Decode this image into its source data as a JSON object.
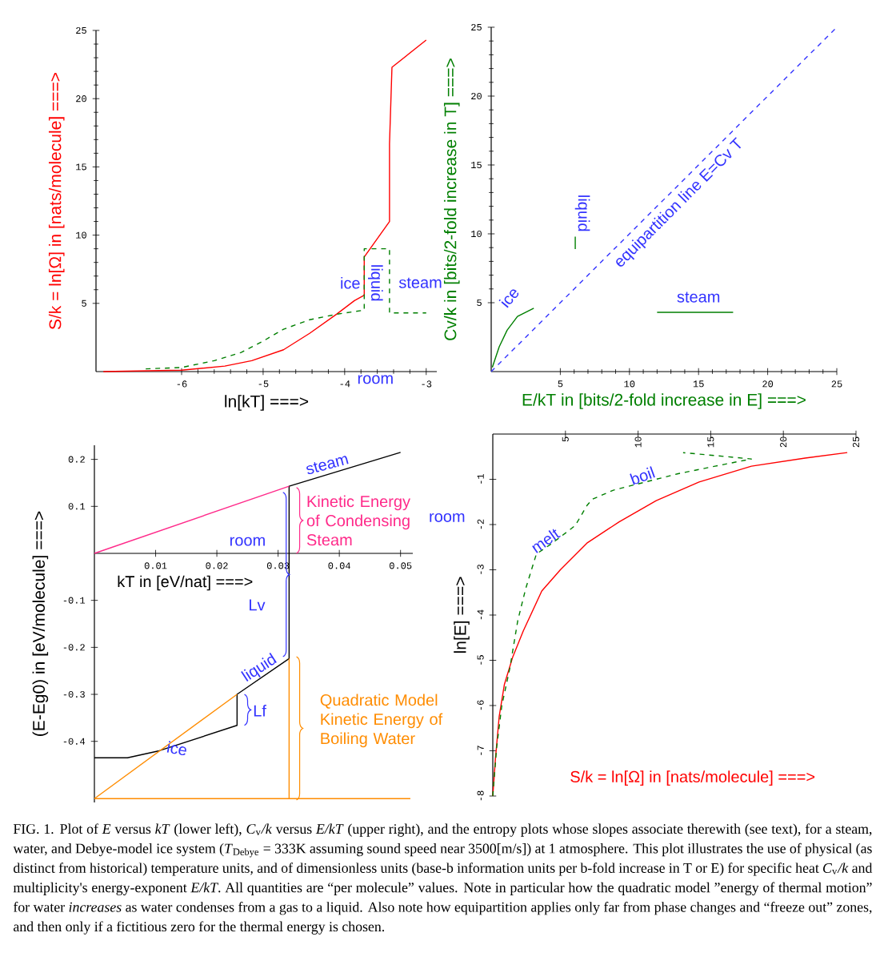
{
  "chart_data": [
    {
      "type": "line",
      "xlabel": "ln[kT] ===>",
      "ylabel": "S/k = ln[Ω] in [nats/molecule] ===>",
      "xlim": [
        -7.05,
        -2.87
      ],
      "ylim": [
        0,
        25
      ],
      "xticks": [
        -6,
        -5,
        -4,
        -3
      ],
      "yticks": [
        5,
        10,
        15,
        20,
        25
      ],
      "series": [
        {
          "color": "#ff0000",
          "line_style": "solid",
          "x": [
            -6.96,
            -6,
            -5.47,
            -5.14,
            -4.75,
            -4.43,
            -4.1,
            -3.88,
            -3.76,
            -3.76,
            -3.45,
            -3.45,
            -3.42,
            -3.0
          ],
          "values": [
            0,
            0.1,
            0.4,
            0.8,
            1.6,
            2.8,
            4.2,
            5.2,
            5.6,
            8.4,
            11.0,
            16.7,
            22.3,
            24.3
          ]
        },
        {
          "color": "#007f00",
          "line_style": "dashed",
          "x": [
            -6.44,
            -6,
            -5.6,
            -5.27,
            -5.01,
            -4.75,
            -4.43,
            -4.1,
            -3.76,
            -3.76,
            -3.45,
            -3.45,
            -3.0
          ],
          "values": [
            0.2,
            0.3,
            0.8,
            1.4,
            2.2,
            3.1,
            3.8,
            4.2,
            4.5,
            9.0,
            9.0,
            4.3,
            4.3
          ]
        }
      ],
      "annotations": [
        "ice",
        "liquid",
        "steam",
        "room"
      ]
    },
    {
      "type": "line",
      "xlabel": "E/kT in [bits/2-fold increase in E] ===>",
      "ylabel": "Cv/k in [bits/2-fold increase in T] ===>",
      "xlim": [
        0,
        25
      ],
      "ylim": [
        0,
        25
      ],
      "xticks": [
        5,
        10,
        15,
        20,
        25
      ],
      "yticks": [
        5,
        10,
        15,
        20,
        25
      ],
      "series": [
        {
          "color": "#007f00",
          "line_style": "solid",
          "x": [
            0.08,
            0.58,
            1.15,
            1.9,
            3.08
          ],
          "values": [
            0.3,
            1.8,
            3.0,
            4.0,
            4.6
          ]
        },
        {
          "color": "#007f00",
          "line_style": "solid",
          "x": [
            6.08,
            6.08
          ],
          "values": [
            8.9,
            9.8
          ]
        },
        {
          "color": "#007f00",
          "line_style": "solid",
          "x": [
            12,
            17.5
          ],
          "values": [
            4.3,
            4.3
          ]
        },
        {
          "color": "#3333ff",
          "line_style": "dashed",
          "x": [
            0,
            25
          ],
          "values": [
            0,
            25
          ]
        }
      ],
      "annotations": [
        "ice",
        "liquid",
        "steam",
        "equipartition line E=Cv T"
      ]
    },
    {
      "type": "line",
      "xlabel": "kT in [eV/nat] ===>",
      "ylabel": "(E-Eg0) in [eV/molecule] ===>",
      "xlim": [
        0,
        0.052
      ],
      "ylim": [
        -0.53,
        0.23
      ],
      "xticks": [
        0.01,
        0.02,
        0.03,
        0.04,
        0.05
      ],
      "yticks": [
        -0.4,
        -0.3,
        -0.2,
        -0.1,
        0.1,
        0.2
      ],
      "series": [
        {
          "color": "#000000",
          "line_style": "solid",
          "x": [
            0,
            0.0054,
            0.0106,
            0.0233,
            0.0233,
            0.0318,
            0.0318,
            0.05
          ],
          "values": [
            -0.435,
            -0.435,
            -0.42,
            -0.366,
            -0.3,
            -0.224,
            0.143,
            0.215
          ]
        },
        {
          "color": "#ff2a8a",
          "line_style": "solid",
          "x": [
            0,
            0.0318
          ],
          "values": [
            0,
            0.143
          ]
        },
        {
          "color": "#ff8c00",
          "line_style": "solid",
          "x": [
            0,
            0.0233
          ],
          "values": [
            -0.522,
            -0.3
          ]
        },
        {
          "color": "#ff8c00",
          "line_style": "solid",
          "x": [
            0,
            0.0516
          ],
          "values": [
            -0.522,
            -0.522
          ]
        },
        {
          "color": "#ff8c00",
          "line_style": "solid",
          "x": [
            0.0318,
            0.0318
          ],
          "values": [
            -0.522,
            -0.224
          ]
        }
      ],
      "annotations": [
        "steam",
        {
          "text": "Kinetic Energy of Condensing Steam",
          "x": 0.033,
          "y": 0.07
        },
        "room",
        "Lv",
        {
          "text": "liquid",
          "x": 0.027,
          "y": -0.245
        },
        "Lf",
        {
          "text": "ice",
          "x": 0.0135,
          "y": -0.415
        },
        "Quadratic Model Kinetic Energy of Boiling Water"
      ]
    },
    {
      "type": "line",
      "xlabel": "S/k = ln[Ω] in [nats/molecule] ===>",
      "ylabel": "ln[E] ===>",
      "xlim": [
        0,
        25
      ],
      "ylim": [
        -8,
        0
      ],
      "xticks": [
        5,
        10,
        15,
        20,
        25
      ],
      "yticks": [
        -1,
        -2,
        -3,
        -4,
        -5,
        -6,
        -7,
        -8
      ],
      "series": [
        {
          "color": "#ff0000",
          "line_style": "solid",
          "x": [
            0,
            0.18,
            0.44,
            0.8,
            1.36,
            2.1,
            3.37,
            4.65,
            6.48,
            8.7,
            11.25,
            14.2,
            17.8,
            21.5,
            24.4
          ],
          "values": [
            -8,
            -7.18,
            -6.24,
            -5.53,
            -4.94,
            -4.35,
            -3.47,
            -3.0,
            -2.41,
            -1.94,
            -1.47,
            -1.06,
            -0.71,
            -0.53,
            -0.41
          ]
        },
        {
          "color": "#007f00",
          "line_style": "dashed",
          "x": [
            0,
            0.26,
            0.62,
            1.17,
            1.72,
            2.27,
            3.0,
            4.1,
            5.68,
            6.48,
            6.85,
            8.3,
            10.5,
            12.7,
            15.3,
            17.8,
            13.1
          ],
          "values": [
            -8,
            -6.94,
            -6.0,
            -5.18,
            -4.12,
            -3.41,
            -2.65,
            -2.41,
            -2.02,
            -1.58,
            -1.44,
            -1.24,
            -1.06,
            -0.88,
            -0.71,
            -0.55,
            -0.41
          ]
        }
      ],
      "annotations": [
        {
          "text": "melt",
          "x": 3.6,
          "y": -2.35
        },
        {
          "text": "boil",
          "x": 10.3,
          "y": -0.92
        },
        "room",
        "FIG. 1. Plot of *E* versus *kT* (lower left), *C*$_{v}$*/k* versus *E/kT* (upper right), and the entropy plots whose slopes associate therewith (see text), for a steam, water, and Debye-model ice system (*T*$_{Debye}$ = 333K assuming sound speed near 3500[m/s]) at 1 atmosphere. This plot illustrates the use of physical (as distinct from historical) temperature units, and of dimensionless units (base-b information units per b-fold increase in T or E) for specific heat *C*$_{v}$*/k* and multiplicity's energy-exponent *E/kT*. All quantities are “per molecule” values. Note in particular how the quadratic model ”energy of thermal motion” for water *increases* as water condenses from a gas to a liquid. Also note how equipartition applies only far from phase changes and “freeze out” zones, and then only if a fictitious zero for the thermal energy is chosen."
      ]
    }
  ]
}
